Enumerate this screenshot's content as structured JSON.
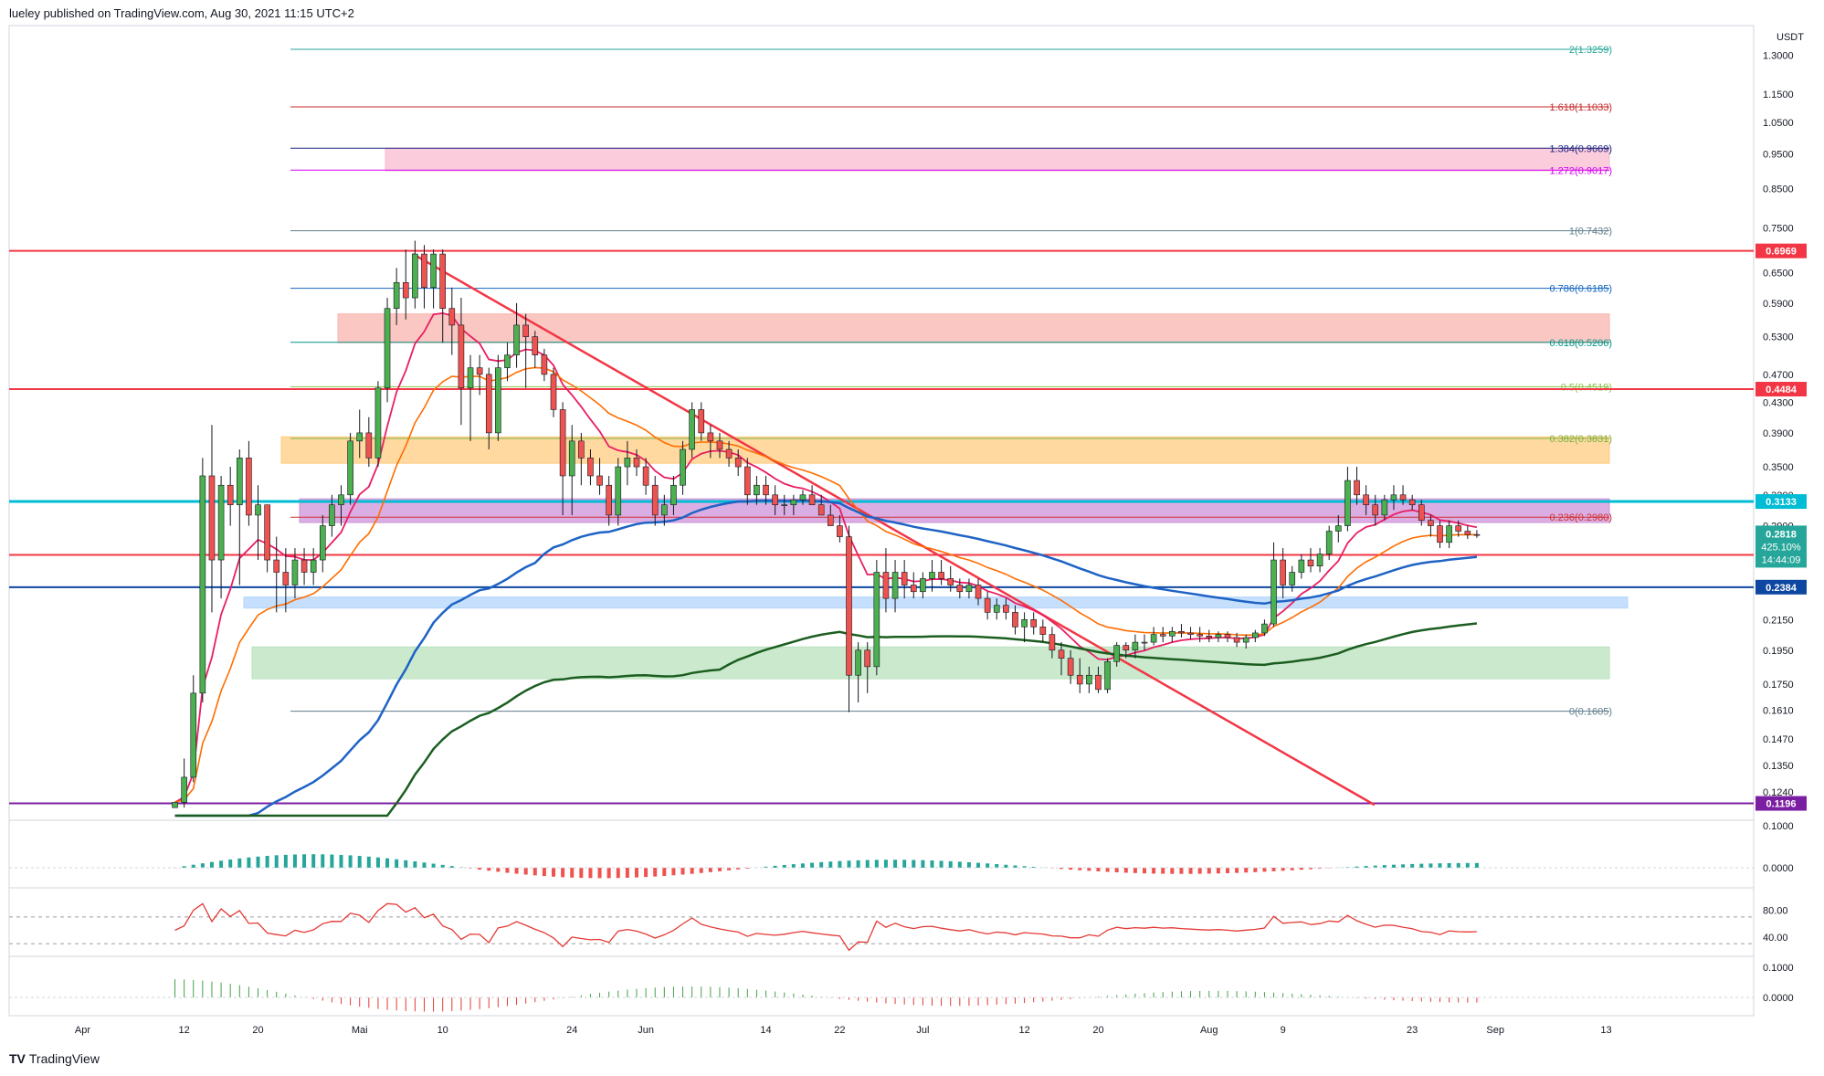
{
  "header": {
    "published_text": "lueley published on TradingView.com, Aug 30, 2021 11:15 UTC+2"
  },
  "footer": {
    "brand": "TradingView"
  },
  "colors": {
    "accent_red": "#f23645",
    "accent_teal": "#26a69a",
    "ema_blue": "#1e63c5",
    "ema_green": "#1b5e20",
    "ema_orange": "#ff6d00",
    "ema_crimson": "#e91e63",
    "bollinger": "#26a69a"
  },
  "chart_data": {
    "type": "candlestick",
    "currency": "USDT",
    "y_scale": "log",
    "ylim": [
      0.114,
      1.43
    ],
    "price_ticks": [
      "1.3000",
      "1.1500",
      "1.0500",
      "0.9500",
      "0.8500",
      "0.7500",
      "0.6500",
      "0.5900",
      "0.5300",
      "0.4700",
      "0.4300",
      "0.3900",
      "0.3500",
      "0.3200",
      "0.2900",
      "0.2150",
      "0.1950",
      "0.1750",
      "0.1610",
      "0.1470",
      "0.1350",
      "0.1240"
    ],
    "x_ticks": [
      "Apr",
      "12",
      "20",
      "Mai",
      "10",
      "24",
      "Jun",
      "14",
      "22",
      "Jul",
      "12",
      "20",
      "Aug",
      "9",
      "23",
      "Sep",
      "13"
    ],
    "current": {
      "price": "0.2818",
      "change": "425.10%",
      "countdown": "14:44:09"
    },
    "price_badges": [
      {
        "value": "0.6969",
        "price": 0.6969,
        "color": "#f23645"
      },
      {
        "value": "0.4484",
        "price": 0.4484,
        "color": "#f23645"
      },
      {
        "value": "0.3133",
        "price": 0.3133,
        "color": "#00bcd4"
      },
      {
        "value": "0.2642",
        "price": 0.2642,
        "color": "#f23645"
      },
      {
        "value": "0.2384",
        "price": 0.2384,
        "color": "#0d47a1"
      },
      {
        "value": "0.1196",
        "price": 0.1196,
        "color": "#7b1fa2"
      }
    ],
    "fib_levels": [
      {
        "label": "2(1.3259)",
        "price": 1.3259,
        "color": "#26a69a"
      },
      {
        "label": "1.618(1.1033)",
        "price": 1.1033,
        "color": "#c62828"
      },
      {
        "label": "1.384(0.9669)",
        "price": 0.9669,
        "color": "#1a237e"
      },
      {
        "label": "1.272(0.9017)",
        "price": 0.9017,
        "color": "#d500f9"
      },
      {
        "label": "1(0.7432)",
        "price": 0.7432,
        "color": "#607d8b"
      },
      {
        "label": "0.786(0.6185)",
        "price": 0.6185,
        "color": "#1565c0"
      },
      {
        "label": "0.618(0.5206)",
        "price": 0.5206,
        "color": "#009688"
      },
      {
        "label": "0.5(0.4519)",
        "price": 0.4519,
        "color": "#8bc34a"
      },
      {
        "label": "0.382(0.3831)",
        "price": 0.3831,
        "color": "#7cb342"
      },
      {
        "label": "0.236(0.2980)",
        "price": 0.298,
        "color": "#d32f2f"
      },
      {
        "label": "0(0.1605)",
        "price": 0.1605,
        "color": "#607d8b"
      }
    ],
    "zones": [
      {
        "from": 0.9,
        "to": 0.967,
        "color": "#f8bbd0"
      },
      {
        "from": 0.52,
        "to": 0.57,
        "color": "#f8b4ae"
      },
      {
        "from": 0.354,
        "to": 0.385,
        "color": "#ffcc80"
      },
      {
        "from": 0.293,
        "to": 0.316,
        "color": "#ce93d8"
      },
      {
        "from": 0.223,
        "to": 0.231,
        "color": "#b3d4fb"
      },
      {
        "from": 0.178,
        "to": 0.197,
        "color": "#b9e2bc"
      }
    ],
    "candles": [
      [
        "2021-04-11",
        0.118,
        0.118,
        0.118,
        0.12
      ],
      [
        "2021-04-12",
        0.12,
        0.138,
        0.118,
        0.13
      ],
      [
        "2021-04-13",
        0.13,
        0.18,
        0.128,
        0.17
      ],
      [
        "2021-04-14",
        0.17,
        0.36,
        0.165,
        0.34
      ],
      [
        "2021-04-15",
        0.34,
        0.4,
        0.22,
        0.26
      ],
      [
        "2021-04-16",
        0.26,
        0.34,
        0.23,
        0.33
      ],
      [
        "2021-04-17",
        0.33,
        0.35,
        0.29,
        0.31
      ],
      [
        "2021-04-18",
        0.31,
        0.37,
        0.24,
        0.36
      ],
      [
        "2021-04-19",
        0.36,
        0.38,
        0.29,
        0.3
      ],
      [
        "2021-04-20",
        0.3,
        0.33,
        0.26,
        0.31
      ],
      [
        "2021-04-21",
        0.31,
        0.31,
        0.25,
        0.26
      ],
      [
        "2021-04-22",
        0.26,
        0.28,
        0.22,
        0.25
      ],
      [
        "2021-04-23",
        0.25,
        0.27,
        0.22,
        0.24
      ],
      [
        "2021-04-24",
        0.24,
        0.27,
        0.23,
        0.26
      ],
      [
        "2021-04-25",
        0.26,
        0.27,
        0.24,
        0.25
      ],
      [
        "2021-04-26",
        0.25,
        0.27,
        0.24,
        0.26
      ],
      [
        "2021-04-27",
        0.26,
        0.3,
        0.25,
        0.29
      ],
      [
        "2021-04-28",
        0.29,
        0.32,
        0.28,
        0.31
      ],
      [
        "2021-04-29",
        0.31,
        0.33,
        0.29,
        0.32
      ],
      [
        "2021-04-30",
        0.32,
        0.39,
        0.31,
        0.38
      ],
      [
        "2021-05-01",
        0.38,
        0.42,
        0.36,
        0.39
      ],
      [
        "2021-05-02",
        0.39,
        0.41,
        0.35,
        0.36
      ],
      [
        "2021-05-03",
        0.36,
        0.46,
        0.35,
        0.45
      ],
      [
        "2021-05-04",
        0.45,
        0.6,
        0.43,
        0.58
      ],
      [
        "2021-05-05",
        0.58,
        0.66,
        0.55,
        0.63
      ],
      [
        "2021-05-06",
        0.63,
        0.7,
        0.56,
        0.6
      ],
      [
        "2021-05-07",
        0.6,
        0.72,
        0.58,
        0.69
      ],
      [
        "2021-05-08",
        0.69,
        0.71,
        0.58,
        0.62
      ],
      [
        "2021-05-09",
        0.62,
        0.7,
        0.58,
        0.69
      ],
      [
        "2021-05-10",
        0.69,
        0.7,
        0.52,
        0.58
      ],
      [
        "2021-05-11",
        0.58,
        0.62,
        0.5,
        0.55
      ],
      [
        "2021-05-12",
        0.55,
        0.6,
        0.4,
        0.45
      ],
      [
        "2021-05-13",
        0.45,
        0.5,
        0.38,
        0.48
      ],
      [
        "2021-05-14",
        0.48,
        0.5,
        0.44,
        0.47
      ],
      [
        "2021-05-15",
        0.47,
        0.48,
        0.37,
        0.39
      ],
      [
        "2021-05-16",
        0.39,
        0.5,
        0.38,
        0.48
      ],
      [
        "2021-05-17",
        0.48,
        0.52,
        0.46,
        0.5
      ],
      [
        "2021-05-18",
        0.5,
        0.59,
        0.48,
        0.55
      ],
      [
        "2021-05-19",
        0.55,
        0.57,
        0.45,
        0.53
      ],
      [
        "2021-05-20",
        0.53,
        0.54,
        0.48,
        0.5
      ],
      [
        "2021-05-21",
        0.5,
        0.51,
        0.46,
        0.47
      ],
      [
        "2021-05-22",
        0.47,
        0.48,
        0.41,
        0.42
      ],
      [
        "2021-05-23",
        0.42,
        0.43,
        0.3,
        0.34
      ],
      [
        "2021-05-24",
        0.34,
        0.4,
        0.3,
        0.38
      ],
      [
        "2021-05-25",
        0.38,
        0.39,
        0.33,
        0.36
      ],
      [
        "2021-05-26",
        0.36,
        0.37,
        0.33,
        0.34
      ],
      [
        "2021-05-27",
        0.34,
        0.36,
        0.32,
        0.33
      ],
      [
        "2021-05-28",
        0.33,
        0.34,
        0.29,
        0.3
      ],
      [
        "2021-05-29",
        0.3,
        0.36,
        0.29,
        0.35
      ],
      [
        "2021-05-30",
        0.35,
        0.38,
        0.33,
        0.36
      ],
      [
        "2021-05-31",
        0.36,
        0.37,
        0.34,
        0.35
      ],
      [
        "2021-06-01",
        0.35,
        0.36,
        0.32,
        0.33
      ],
      [
        "2021-06-02",
        0.33,
        0.34,
        0.29,
        0.3
      ],
      [
        "2021-06-03",
        0.3,
        0.32,
        0.29,
        0.31
      ],
      [
        "2021-06-04",
        0.31,
        0.34,
        0.3,
        0.33
      ],
      [
        "2021-06-05",
        0.33,
        0.38,
        0.32,
        0.37
      ],
      [
        "2021-06-06",
        0.37,
        0.43,
        0.36,
        0.42
      ],
      [
        "2021-06-07",
        0.42,
        0.43,
        0.38,
        0.39
      ],
      [
        "2021-06-08",
        0.39,
        0.4,
        0.36,
        0.38
      ],
      [
        "2021-06-09",
        0.38,
        0.39,
        0.36,
        0.37
      ],
      [
        "2021-06-10",
        0.37,
        0.38,
        0.35,
        0.36
      ],
      [
        "2021-06-11",
        0.36,
        0.37,
        0.34,
        0.35
      ],
      [
        "2021-06-12",
        0.35,
        0.36,
        0.31,
        0.32
      ],
      [
        "2021-06-13",
        0.32,
        0.34,
        0.31,
        0.33
      ],
      [
        "2021-06-14",
        0.33,
        0.34,
        0.31,
        0.32
      ],
      [
        "2021-06-15",
        0.32,
        0.33,
        0.3,
        0.31
      ],
      [
        "2021-06-16",
        0.31,
        0.32,
        0.3,
        0.31
      ],
      [
        "2021-06-17",
        0.31,
        0.32,
        0.3,
        0.315
      ],
      [
        "2021-06-18",
        0.315,
        0.325,
        0.31,
        0.32
      ],
      [
        "2021-06-19",
        0.32,
        0.33,
        0.31,
        0.31
      ],
      [
        "2021-06-20",
        0.31,
        0.32,
        0.3,
        0.3
      ],
      [
        "2021-06-21",
        0.3,
        0.31,
        0.29,
        0.29
      ],
      [
        "2021-06-22",
        0.29,
        0.3,
        0.275,
        0.28
      ],
      [
        "2021-06-23",
        0.28,
        0.29,
        0.16,
        0.18
      ],
      [
        "2021-06-24",
        0.18,
        0.2,
        0.165,
        0.195
      ],
      [
        "2021-06-25",
        0.195,
        0.2,
        0.17,
        0.185
      ],
      [
        "2021-06-26",
        0.185,
        0.26,
        0.18,
        0.25
      ],
      [
        "2021-06-27",
        0.25,
        0.27,
        0.22,
        0.23
      ],
      [
        "2021-06-28",
        0.23,
        0.26,
        0.22,
        0.25
      ],
      [
        "2021-06-29",
        0.25,
        0.26,
        0.23,
        0.24
      ],
      [
        "2021-06-30",
        0.24,
        0.25,
        0.23,
        0.235
      ],
      [
        "2021-07-01",
        0.235,
        0.25,
        0.23,
        0.245
      ],
      [
        "2021-07-02",
        0.245,
        0.26,
        0.235,
        0.25
      ],
      [
        "2021-07-03",
        0.25,
        0.26,
        0.24,
        0.245
      ],
      [
        "2021-07-04",
        0.245,
        0.255,
        0.235,
        0.24
      ],
      [
        "2021-07-05",
        0.24,
        0.245,
        0.23,
        0.235
      ],
      [
        "2021-07-06",
        0.235,
        0.245,
        0.23,
        0.24
      ],
      [
        "2021-07-07",
        0.24,
        0.245,
        0.225,
        0.23
      ],
      [
        "2021-07-08",
        0.23,
        0.235,
        0.215,
        0.22
      ],
      [
        "2021-07-09",
        0.22,
        0.23,
        0.215,
        0.225
      ],
      [
        "2021-07-10",
        0.225,
        0.23,
        0.215,
        0.22
      ],
      [
        "2021-07-11",
        0.22,
        0.225,
        0.205,
        0.21
      ],
      [
        "2021-07-12",
        0.21,
        0.22,
        0.2,
        0.215
      ],
      [
        "2021-07-13",
        0.215,
        0.22,
        0.205,
        0.21
      ],
      [
        "2021-07-14",
        0.21,
        0.215,
        0.2,
        0.205
      ],
      [
        "2021-07-15",
        0.205,
        0.21,
        0.19,
        0.195
      ],
      [
        "2021-07-16",
        0.195,
        0.2,
        0.18,
        0.19
      ],
      [
        "2021-07-17",
        0.19,
        0.195,
        0.175,
        0.18
      ],
      [
        "2021-07-18",
        0.18,
        0.19,
        0.17,
        0.175
      ],
      [
        "2021-07-19",
        0.175,
        0.185,
        0.17,
        0.18
      ],
      [
        "2021-07-20",
        0.18,
        0.185,
        0.17,
        0.172
      ],
      [
        "2021-07-21",
        0.172,
        0.19,
        0.17,
        0.188
      ],
      [
        "2021-07-22",
        0.188,
        0.2,
        0.185,
        0.198
      ],
      [
        "2021-07-23",
        0.198,
        0.2,
        0.19,
        0.195
      ],
      [
        "2021-07-24",
        0.195,
        0.205,
        0.19,
        0.2
      ],
      [
        "2021-07-25",
        0.2,
        0.205,
        0.195,
        0.2
      ],
      [
        "2021-07-26",
        0.2,
        0.21,
        0.198,
        0.205
      ],
      [
        "2021-07-27",
        0.205,
        0.21,
        0.2,
        0.204
      ],
      [
        "2021-07-28",
        0.204,
        0.21,
        0.2,
        0.207
      ],
      [
        "2021-07-29",
        0.207,
        0.212,
        0.203,
        0.206
      ],
      [
        "2021-07-30",
        0.206,
        0.21,
        0.202,
        0.205
      ],
      [
        "2021-07-31",
        0.205,
        0.21,
        0.2,
        0.204
      ],
      [
        "2021-08-01",
        0.204,
        0.208,
        0.2,
        0.203
      ],
      [
        "2021-08-02",
        0.203,
        0.207,
        0.2,
        0.205
      ],
      [
        "2021-08-03",
        0.205,
        0.207,
        0.2,
        0.203
      ],
      [
        "2021-08-04",
        0.203,
        0.206,
        0.197,
        0.2
      ],
      [
        "2021-08-05",
        0.2,
        0.205,
        0.196,
        0.203
      ],
      [
        "2021-08-06",
        0.203,
        0.208,
        0.2,
        0.206
      ],
      [
        "2021-08-07",
        0.206,
        0.215,
        0.204,
        0.212
      ],
      [
        "2021-08-08",
        0.212,
        0.275,
        0.21,
        0.26
      ],
      [
        "2021-08-09",
        0.26,
        0.27,
        0.23,
        0.24
      ],
      [
        "2021-08-10",
        0.24,
        0.255,
        0.235,
        0.25
      ],
      [
        "2021-08-11",
        0.25,
        0.265,
        0.245,
        0.26
      ],
      [
        "2021-08-12",
        0.26,
        0.27,
        0.25,
        0.255
      ],
      [
        "2021-08-13",
        0.255,
        0.27,
        0.25,
        0.265
      ],
      [
        "2021-08-14",
        0.265,
        0.29,
        0.26,
        0.285
      ],
      [
        "2021-08-15",
        0.285,
        0.3,
        0.275,
        0.29
      ],
      [
        "2021-08-16",
        0.29,
        0.35,
        0.285,
        0.335
      ],
      [
        "2021-08-17",
        0.335,
        0.35,
        0.31,
        0.32
      ],
      [
        "2021-08-18",
        0.32,
        0.33,
        0.3,
        0.31
      ],
      [
        "2021-08-19",
        0.31,
        0.32,
        0.29,
        0.3
      ],
      [
        "2021-08-20",
        0.3,
        0.32,
        0.295,
        0.315
      ],
      [
        "2021-08-21",
        0.315,
        0.33,
        0.305,
        0.32
      ],
      [
        "2021-08-22",
        0.32,
        0.33,
        0.31,
        0.315
      ],
      [
        "2021-08-23",
        0.315,
        0.32,
        0.305,
        0.31
      ],
      [
        "2021-08-24",
        0.31,
        0.315,
        0.29,
        0.295
      ],
      [
        "2021-08-25",
        0.295,
        0.3,
        0.28,
        0.29
      ],
      [
        "2021-08-26",
        0.29,
        0.295,
        0.27,
        0.275
      ],
      [
        "2021-08-27",
        0.275,
        0.295,
        0.27,
        0.29
      ],
      [
        "2021-08-28",
        0.29,
        0.295,
        0.28,
        0.285
      ],
      [
        "2021-08-29",
        0.285,
        0.29,
        0.278,
        0.282
      ],
      [
        "2021-08-30",
        0.282,
        0.286,
        0.279,
        0.2818
      ]
    ],
    "macd_ticks": [
      "0.1000",
      "0.0000"
    ],
    "rsi_ticks": [
      "80.00",
      "40.00"
    ],
    "osc_ticks": [
      "0.1000",
      "0.0000"
    ]
  }
}
